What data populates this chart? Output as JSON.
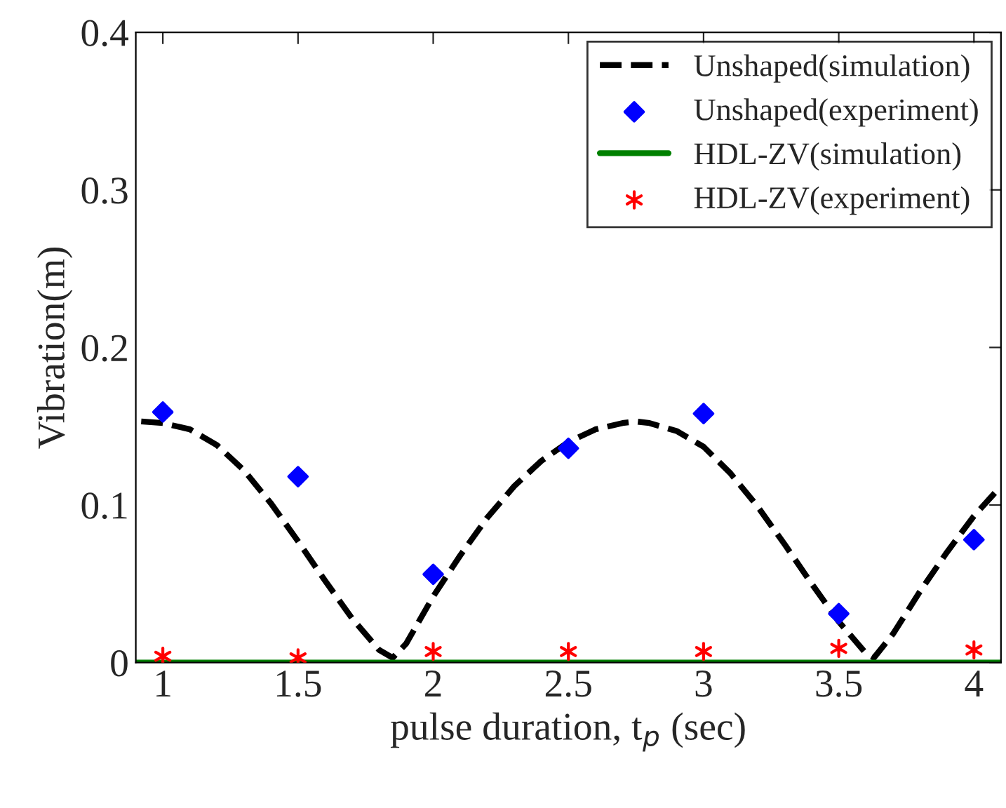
{
  "chart_data": {
    "type": "line",
    "xlabel": "pulse duration, t$_{p}$ (sec)",
    "ylabel": "Vibration(m)",
    "xlim": [
      0.9,
      4.1
    ],
    "xticks": [
      1,
      1.5,
      2,
      2.5,
      3,
      3.5,
      4
    ],
    "ylim": [
      0,
      0.4
    ],
    "yticks": [
      0,
      0.1,
      0.2,
      0.3,
      0.4
    ],
    "grid": false,
    "legend": "top right",
    "series": [
      {
        "name": "Unshaped(simulation)",
        "line_style": "dashed",
        "marker": "none",
        "color": "#000000",
        "x": [
          0.92,
          1.0,
          1.1,
          1.2,
          1.3,
          1.4,
          1.5,
          1.6,
          1.7,
          1.8,
          1.85,
          1.9,
          2.0,
          2.1,
          2.2,
          2.3,
          2.4,
          2.5,
          2.6,
          2.7,
          2.75,
          2.8,
          2.9,
          3.0,
          3.1,
          3.2,
          3.3,
          3.4,
          3.5,
          3.6,
          3.63,
          3.7,
          3.8,
          3.9,
          4.0,
          4.1
        ],
        "values": [
          0.153,
          0.152,
          0.148,
          0.138,
          0.122,
          0.101,
          0.077,
          0.052,
          0.028,
          0.008,
          0.003,
          0.012,
          0.042,
          0.068,
          0.092,
          0.112,
          0.128,
          0.14,
          0.148,
          0.152,
          0.153,
          0.152,
          0.147,
          0.137,
          0.12,
          0.099,
          0.075,
          0.05,
          0.026,
          0.006,
          0.003,
          0.018,
          0.045,
          0.07,
          0.093,
          0.112
        ]
      },
      {
        "name": "Unshaped(experiment)",
        "type": "scatter",
        "marker": "diamond",
        "color": "#0000ff",
        "x": [
          1,
          1.5,
          2,
          2.5,
          3,
          3.5,
          4
        ],
        "values": [
          0.159,
          0.118,
          0.056,
          0.136,
          0.158,
          0.031,
          0.078
        ]
      },
      {
        "name": "HDL-ZV(simulation)",
        "line_style": "solid",
        "marker": "none",
        "color": "#008000",
        "x": [
          0.9,
          4.1
        ],
        "values": [
          0.0,
          0.0
        ]
      },
      {
        "name": "HDL-ZV(experiment)",
        "type": "scatter",
        "marker": "cross",
        "color": "#ff0000",
        "x": [
          1,
          1.5,
          2,
          2.5,
          3,
          3.5,
          4
        ],
        "values": [
          0.004,
          0.003,
          0.007,
          0.007,
          0.007,
          0.009,
          0.008
        ]
      }
    ]
  }
}
